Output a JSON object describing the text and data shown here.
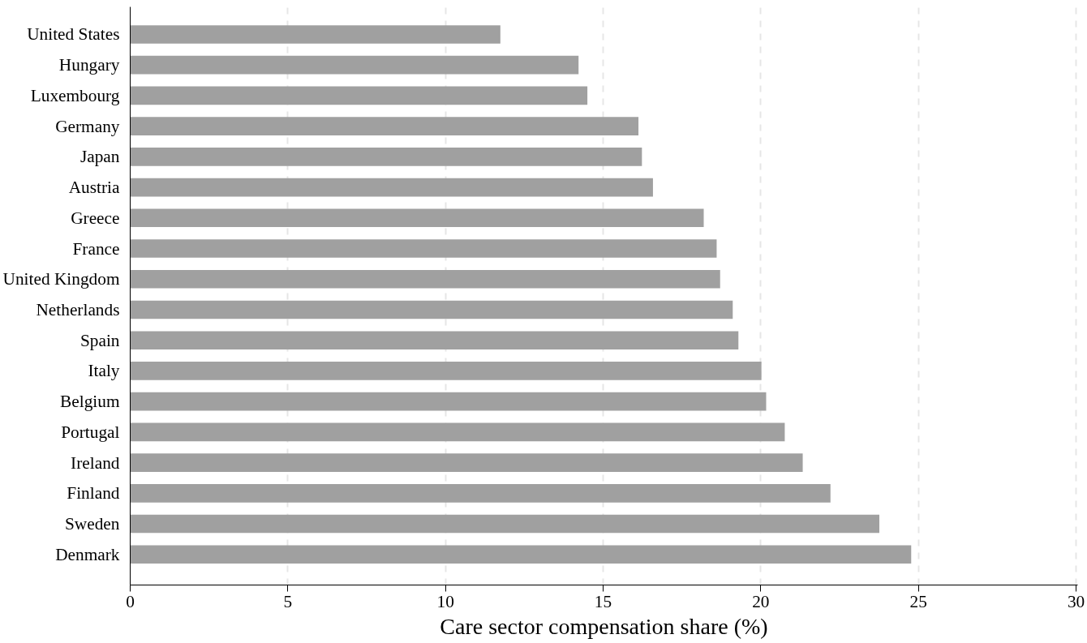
{
  "chart_data": {
    "type": "bar",
    "orientation": "horizontal",
    "xlabel": "Care sector compensation share (%)",
    "categories": [
      "United States",
      "Hungary",
      "Luxembourg",
      "Germany",
      "Japan",
      "Austria",
      "Greece",
      "France",
      "United Kingdom",
      "Netherlands",
      "Spain",
      "Italy",
      "Belgium",
      "Portugal",
      "Ireland",
      "Finland",
      "Sweden",
      "Denmark"
    ],
    "values": [
      11.74,
      14.22,
      14.5,
      16.12,
      16.23,
      16.58,
      18.19,
      18.6,
      18.71,
      19.11,
      19.29,
      20.02,
      20.17,
      20.76,
      21.33,
      22.21,
      23.76,
      24.77
    ],
    "color": "#a0a0a0",
    "xlim": [
      0,
      30.05
    ],
    "xticks": [
      0,
      5,
      10,
      15,
      20,
      25,
      30
    ],
    "grid": "x"
  }
}
